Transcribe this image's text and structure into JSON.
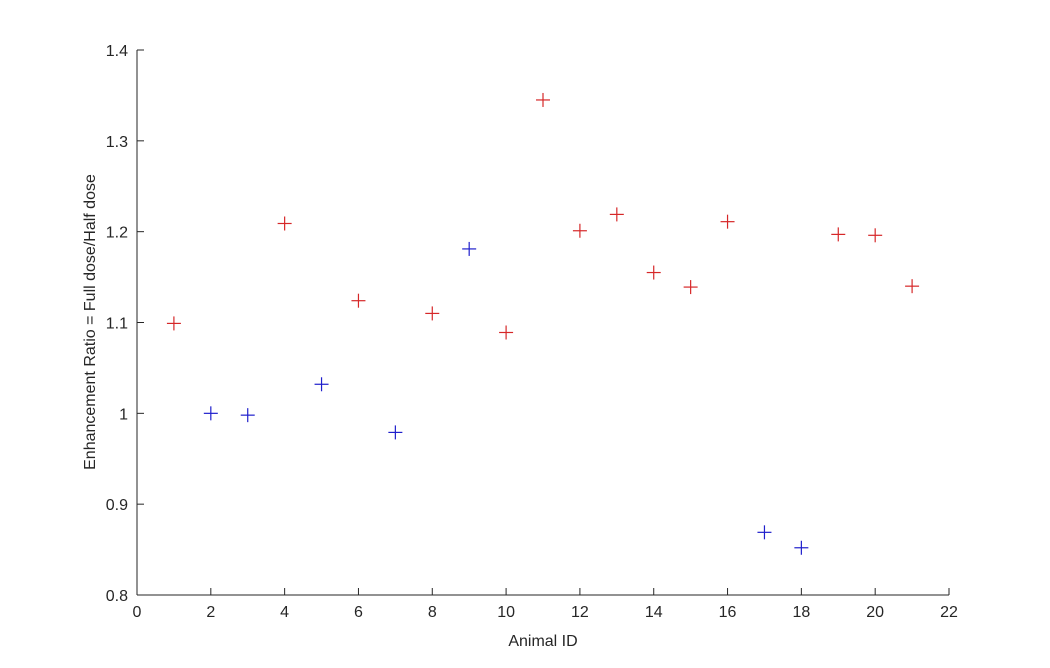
{
  "chart_data": {
    "type": "scatter",
    "title": "",
    "xlabel": "Animal ID",
    "ylabel": "Enhancement Ratio = Full dose/Half dose",
    "xlim": [
      0,
      22
    ],
    "ylim": [
      0.8,
      1.4
    ],
    "xticks": [
      "0",
      "2",
      "4",
      "6",
      "8",
      "10",
      "12",
      "14",
      "16",
      "18",
      "20",
      "22"
    ],
    "yticks": [
      "0.8",
      "0.9",
      "1",
      "1.1",
      "1.2",
      "1.3",
      "1.4"
    ],
    "grid": false,
    "marker": "+",
    "series": [
      {
        "color": "#d62728",
        "x": [
          1,
          4,
          6,
          8,
          10,
          11,
          12,
          13,
          14,
          15,
          16,
          19,
          20,
          21
        ],
        "y": [
          1.099,
          1.209,
          1.124,
          1.11,
          1.089,
          1.345,
          1.201,
          1.219,
          1.155,
          1.139,
          1.211,
          1.197,
          1.196,
          1.14
        ]
      },
      {
        "color": "#1f1fcc",
        "x": [
          2,
          3,
          5,
          7,
          9,
          17,
          18
        ],
        "y": [
          1.0,
          0.998,
          1.032,
          0.979,
          1.181,
          0.869,
          0.852
        ]
      }
    ]
  }
}
